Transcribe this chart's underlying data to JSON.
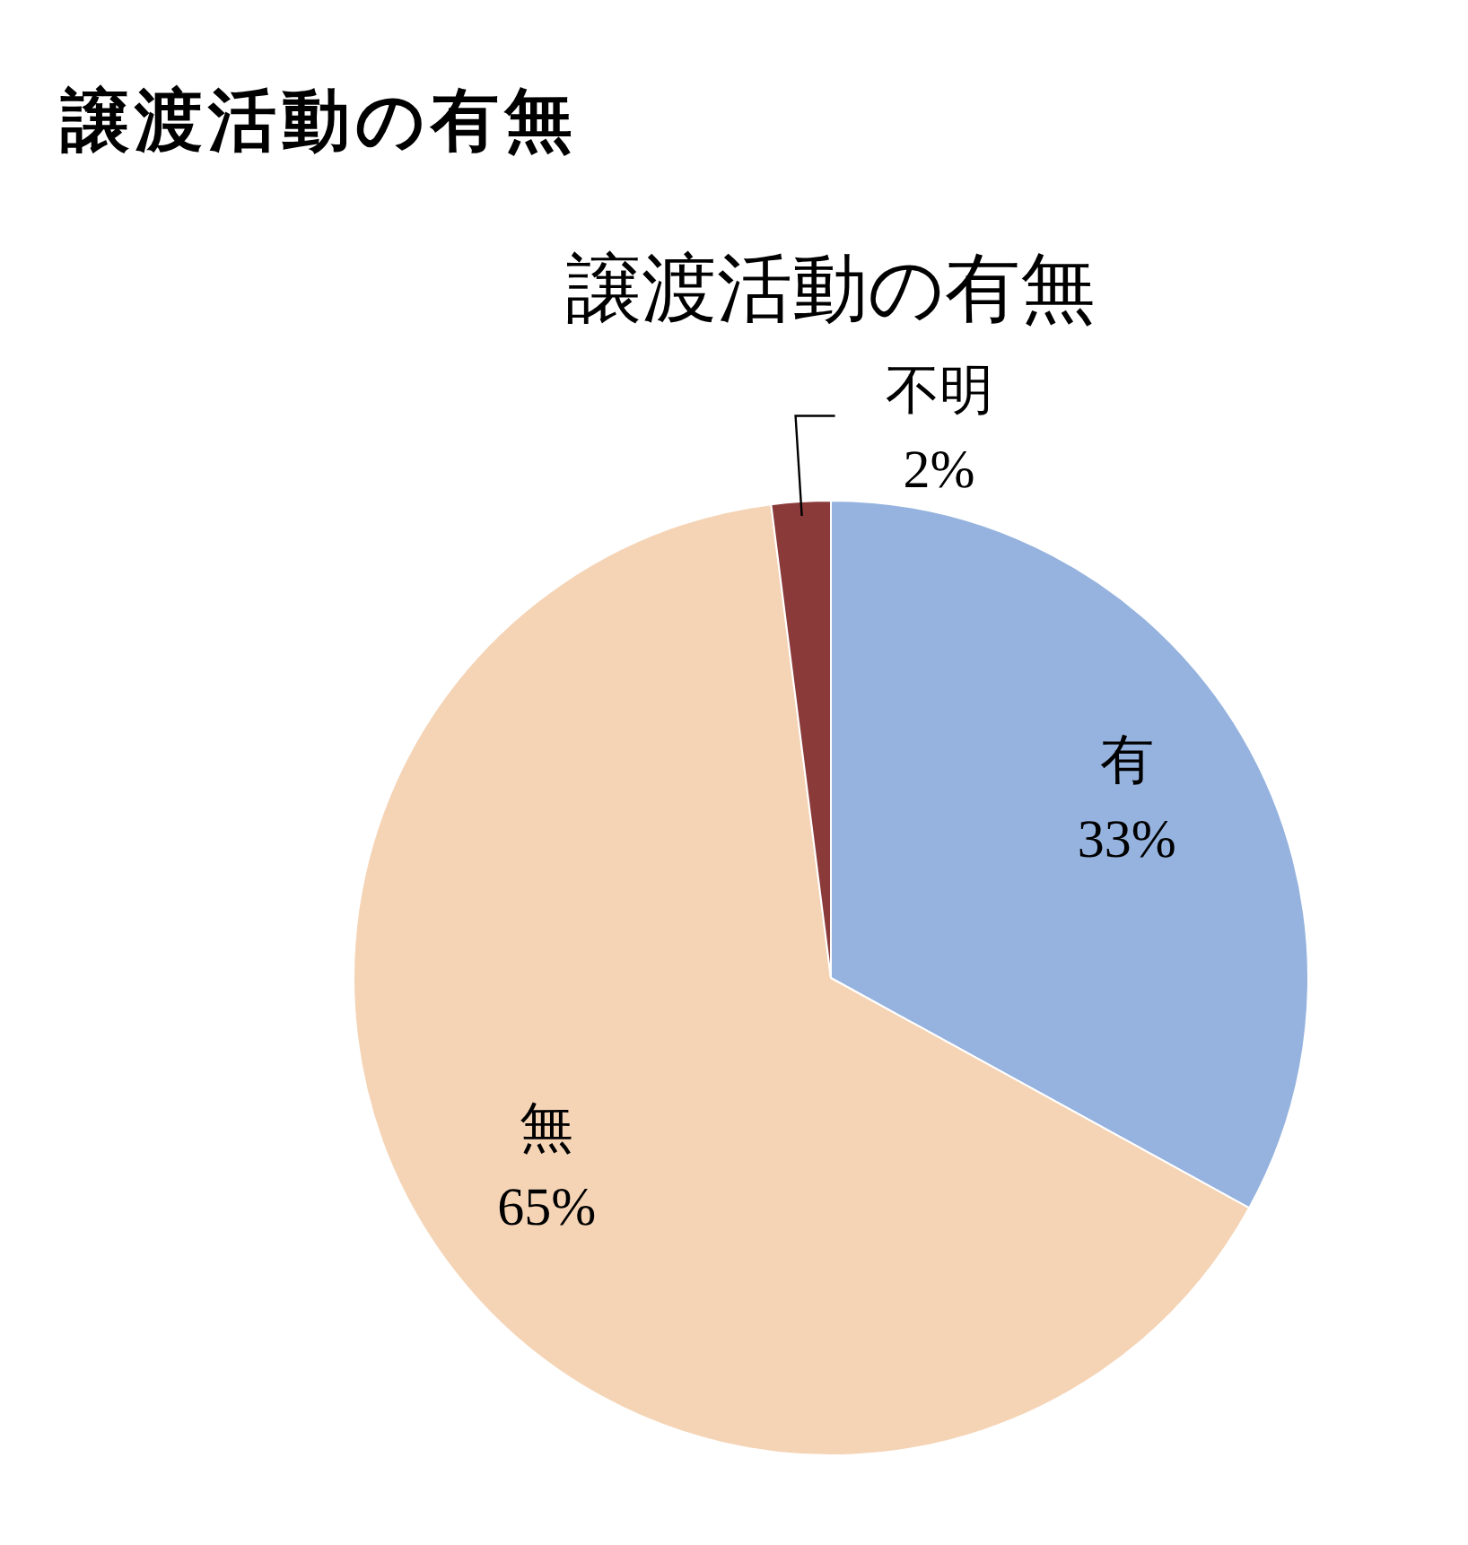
{
  "chart_data": {
    "type": "pie",
    "title": "譲渡活動の有無",
    "subtitle": "譲渡活動の有無",
    "categories": [
      "有",
      "無",
      "不明"
    ],
    "values": [
      33,
      65,
      2
    ],
    "colors": [
      "#95b3de",
      "#f5d4b6",
      "#8b3a3a"
    ],
    "value_labels": [
      "33%",
      "65%",
      "2%"
    ]
  }
}
